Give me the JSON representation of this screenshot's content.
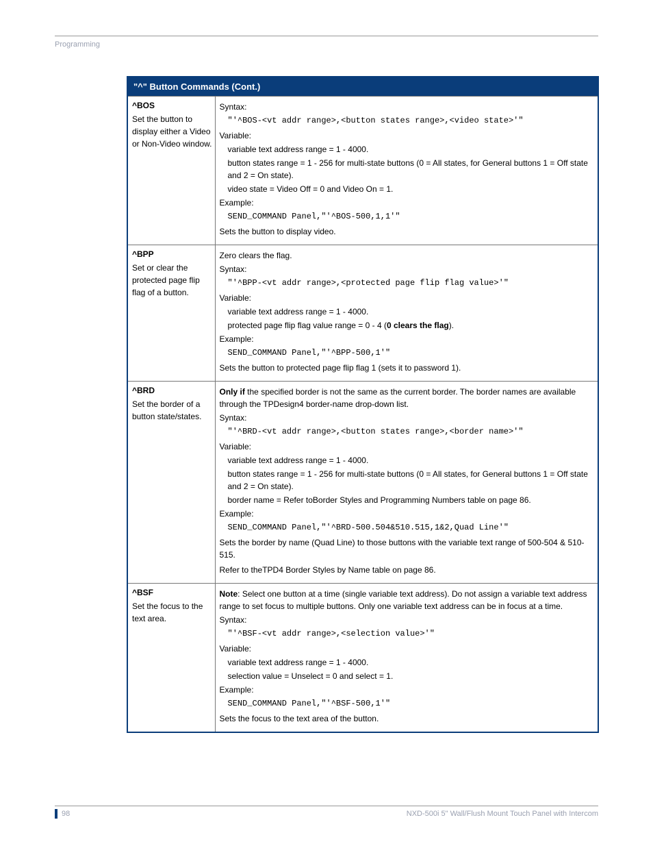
{
  "header": {
    "section": "Programming"
  },
  "table": {
    "title": "\"^\" Button Commands (Cont.)",
    "header_bg": "#0a3d7a",
    "header_fg": "#ffffff",
    "border_color": "#0a3d7a",
    "rows": [
      {
        "name": "^BOS",
        "desc": "Set the button to display either a Video or Non-Video window.",
        "r_intro": "",
        "r_syntax_label": "Syntax:",
        "r_syntax_code": "\"'^BOS-<vt addr range>,<button states range>,<video state>'\"",
        "r_var_label": "Variable:",
        "r_var_lines": [
          "variable text address range = 1 - 4000.",
          "button states range = 1 - 256 for multi-state buttons (0 = All states, for General buttons 1 = Off state and 2 = On state).",
          "video state = Video Off = 0 and Video On = 1."
        ],
        "r_ex_label": "Example:",
        "r_ex_code": "SEND_COMMAND Panel,\"'^BOS-500,1,1'\"",
        "r_result": "Sets the button to display video."
      },
      {
        "name": "^BPP",
        "desc": "Set or clear the protected page flip flag of a button.",
        "r_intro": "Zero clears the flag.",
        "r_syntax_label": "Syntax:",
        "r_syntax_code": "\"'^BPP-<vt addr range>,<protected page flip flag value>'\"",
        "r_var_label": "Variable:",
        "r_var_lines": [
          "variable text address range = 1 - 4000."
        ],
        "r_var_html": "protected page flip flag value range = 0 - 4 (<b>0 clears the flag</b>).",
        "r_ex_label": "Example:",
        "r_ex_code": "SEND_COMMAND Panel,\"'^BPP-500,1'\"",
        "r_result": "Sets the button to protected page flip flag 1 (sets it to password 1)."
      },
      {
        "name": "^BRD",
        "desc": "Set the border of a button state/states.",
        "r_intro_html": "<b>Only if</b> the specified border is not the same as the current border. The border names are available through the TPDesign4 border-name drop-down list.",
        "r_syntax_label": "Syntax:",
        "r_syntax_code": "\"'^BRD-<vt addr range>,<button states range>,<border name>'\"",
        "r_var_label": "Variable:",
        "r_var_lines": [
          "variable text address range = 1 - 4000.",
          "button states range = 1 - 256 for multi-state buttons (0 = All states, for General buttons 1 = Off state and 2 = On state).",
          "border name = Refer toBorder Styles and Programming Numbers table on page 86."
        ],
        "r_ex_label": "Example:",
        "r_ex_code": "SEND_COMMAND Panel,\"'^BRD-500.504&510.515,1&2,Quad Line'\"",
        "r_result": "Sets the border by name (Quad Line) to those buttons with the variable text range of 500-504 & 510-515.",
        "r_extra": "Refer to theTPD4 Border Styles by Name table on page 86."
      },
      {
        "name": "^BSF",
        "desc": "Set the focus to the text area.",
        "r_intro_html": "<b>Note</b>: Select one button at a time (single variable text address). Do not assign a variable text address range to set focus to multiple buttons. Only one variable text address can be in focus at a time.",
        "r_syntax_label": "Syntax:",
        "r_syntax_code": "\"'^BSF-<vt addr range>,<selection value>'\"",
        "r_var_label": "Variable:",
        "r_var_lines": [
          "variable text address range = 1 - 4000.",
          "selection value = Unselect = 0 and select = 1."
        ],
        "r_ex_label": "Example:",
        "r_ex_code": "SEND_COMMAND Panel,\"'^BSF-500,1'\"",
        "r_result": "Sets the focus to the text area of the button."
      }
    ]
  },
  "footer": {
    "page": "98",
    "product": "NXD-500i 5\" Wall/Flush Mount Touch Panel with Intercom"
  }
}
